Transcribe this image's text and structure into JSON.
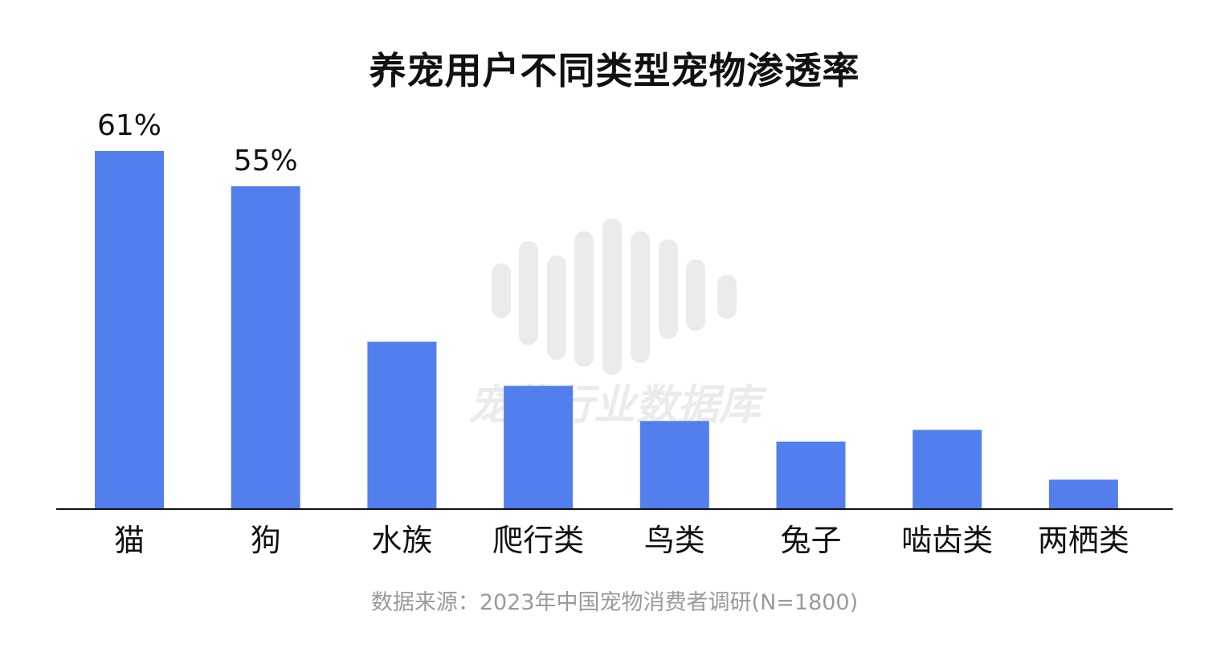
{
  "chart_data": {
    "type": "bar",
    "title": "养宠用户不同类型宠物渗透率",
    "categories": [
      "猫",
      "狗",
      "水族",
      "爬行类",
      "鸟类",
      "兔子",
      "啮齿类",
      "两栖类"
    ],
    "values": [
      61,
      55,
      28.5,
      21,
      15,
      11.5,
      13.5,
      5
    ],
    "data_labels": [
      "61%",
      "55%",
      "",
      "",
      "",
      "",
      "",
      ""
    ],
    "ylim": [
      0,
      61
    ],
    "xlabel": "",
    "ylabel": "",
    "grid": false,
    "bar_color": "#537fee"
  },
  "source": "数据来源：2023年中国宠物消费者调研(N=1800)",
  "watermark": {
    "text": "宠物行业数据库",
    "color": "#ebebeb"
  }
}
